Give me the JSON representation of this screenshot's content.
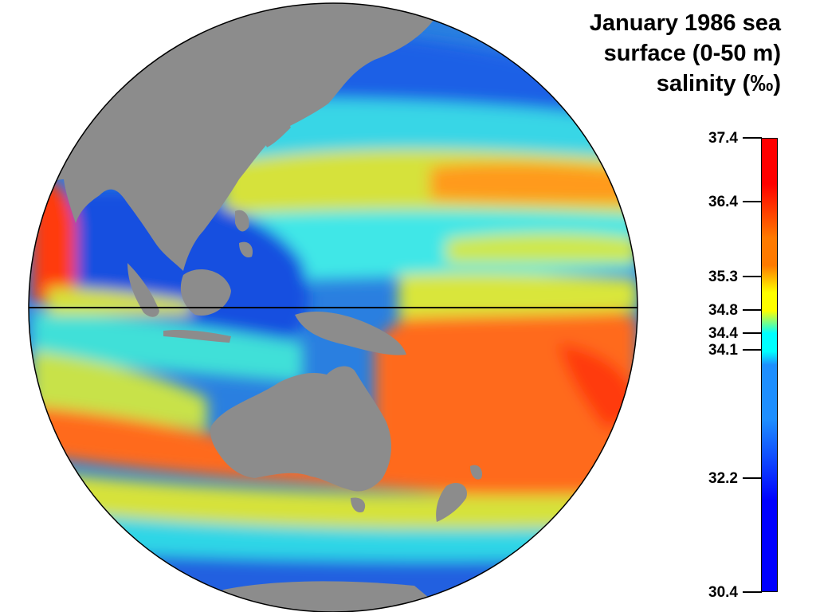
{
  "title_lines": [
    "January 1986 sea",
    "surface (0-50 m)",
    "salinity (‰)"
  ],
  "colorbar": {
    "min": 30.4,
    "max": 37.4,
    "ticks": [
      "37.4",
      "36.4",
      "35.3",
      "34.8",
      "34.4",
      "34.1",
      "32.2",
      "30.4"
    ],
    "colors": {
      "low": "#0000ff",
      "mid_low": "#1e8fff",
      "cyan": "#00ffff",
      "yellow": "#ffff00",
      "orange": "#ff7a00",
      "high": "#ff0000"
    }
  },
  "map": {
    "land_color": "#8c8c8c",
    "equator_color": "#000000"
  }
}
